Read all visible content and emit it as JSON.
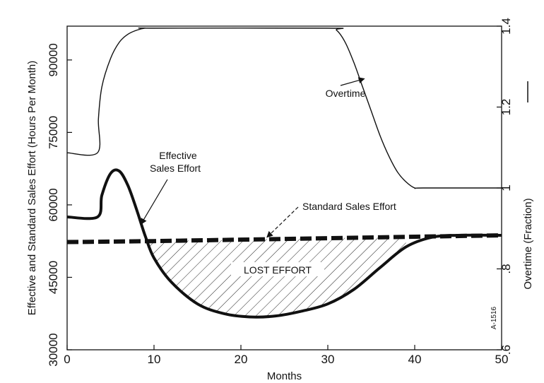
{
  "chart_data": {
    "type": "line",
    "xlabel": "Months",
    "ylabel_left": "Effective and Standard Sales Effort (Hours Per Month)",
    "ylabel_right": "Overtime (Fraction)",
    "xlim": [
      0,
      50
    ],
    "ylim_left": [
      30000,
      97000
    ],
    "ylim_right": [
      0.6,
      1.4
    ],
    "xticks": [
      "0",
      "10",
      "20",
      "30",
      "40",
      "50"
    ],
    "xtick_values": [
      0,
      10,
      20,
      30,
      40,
      50
    ],
    "yticks_left": [
      "30000",
      "45000",
      "60000",
      "75000",
      "90000"
    ],
    "ytick_values_left": [
      30000,
      45000,
      60000,
      75000,
      90000
    ],
    "yticks_right": [
      ".6",
      ".8",
      "1",
      "1.2",
      "1.4"
    ],
    "ytick_values_right": [
      0.6,
      0.8,
      1.0,
      1.2,
      1.4
    ],
    "series": [
      {
        "name": "Overtime",
        "axis": "right",
        "style": "thin",
        "x": [
          0,
          3.5,
          3.6,
          4,
          5,
          6,
          7,
          8,
          9,
          10,
          30,
          31,
          32,
          33,
          34,
          35,
          36,
          37,
          38,
          39,
          40,
          41,
          50
        ],
        "y": [
          1.087,
          1.087,
          1.17,
          1.25,
          1.32,
          1.36,
          1.38,
          1.39,
          1.395,
          1.395,
          1.395,
          1.39,
          1.36,
          1.31,
          1.25,
          1.19,
          1.13,
          1.08,
          1.04,
          1.015,
          1.0,
          1.0,
          1.0
        ]
      },
      {
        "name": "Effective Sales Effort",
        "axis": "left",
        "style": "thick",
        "x": [
          0,
          3.5,
          4,
          5,
          6,
          7,
          8,
          9,
          10,
          12,
          15,
          18,
          21,
          24,
          27,
          30,
          33,
          36,
          39,
          42,
          45,
          50
        ],
        "y": [
          57500,
          57500,
          62000,
          66500,
          67000,
          64000,
          59000,
          53500,
          49000,
          44000,
          39500,
          37500,
          36800,
          37000,
          38000,
          39500,
          42500,
          47000,
          51300,
          53300,
          53700,
          53700
        ]
      },
      {
        "name": "Standard Sales Effort",
        "axis": "left",
        "style": "dashed",
        "x": [
          0,
          10,
          20,
          30,
          40,
          50
        ],
        "y": [
          52300,
          52500,
          52800,
          53100,
          53400,
          53700
        ]
      }
    ],
    "shaded_region": {
      "label": "LOST EFFORT",
      "between": [
        "Standard Sales Effort",
        "Effective Sales Effort"
      ],
      "x_range": [
        9,
        39
      ],
      "pattern": "diagonal hatch"
    },
    "annotations": [
      {
        "text": "Overtime",
        "target": "Overtime"
      },
      {
        "text_lines": [
          "Effective",
          "Sales Effort"
        ],
        "target": "Effective Sales Effort"
      },
      {
        "text": "Standard Sales Effort",
        "target": "Standard Sales Effort"
      },
      {
        "text": "A-1516",
        "rotated": true
      }
    ],
    "grid": false,
    "legend": "none"
  }
}
